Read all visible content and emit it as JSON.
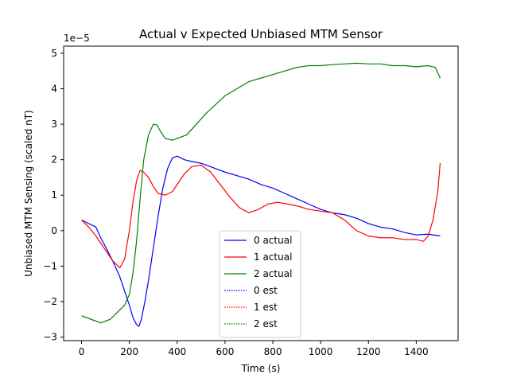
{
  "chart_data": {
    "type": "line",
    "title": "Actual v Expected Unbiased MTM Sensor",
    "xlabel": "Time (s)",
    "ylabel": "Unbiased MTM Sensing (scaled nT)",
    "y_offset_label": "1e−5",
    "xlim": [
      -75,
      1575
    ],
    "ylim": [
      -3.1,
      5.2
    ],
    "x_ticks": [
      0,
      200,
      400,
      600,
      800,
      1000,
      1200,
      1400
    ],
    "x_tick_labels": [
      "0",
      "200",
      "400",
      "600",
      "800",
      "1000",
      "1200",
      "1400"
    ],
    "y_ticks": [
      -3,
      -2,
      -1,
      0,
      1,
      2,
      3,
      4,
      5
    ],
    "y_tick_labels": [
      "−3",
      "−2",
      "−1",
      "0",
      "1",
      "2",
      "3",
      "4",
      "5"
    ],
    "grid": false,
    "legend_position": "lower-center",
    "series": [
      {
        "name": "0 actual",
        "color": "#0000ff",
        "style": "solid",
        "x": [
          0,
          30,
          60,
          80,
          100,
          130,
          160,
          180,
          200,
          215,
          230,
          240,
          250,
          265,
          280,
          300,
          320,
          340,
          360,
          380,
          400,
          430,
          460,
          500,
          540,
          600,
          650,
          700,
          750,
          800,
          850,
          900,
          950,
          1000,
          1050,
          1100,
          1150,
          1200,
          1250,
          1300,
          1350,
          1400,
          1450,
          1500
        ],
        "y": [
          0.3,
          0.2,
          0.1,
          -0.2,
          -0.45,
          -0.85,
          -1.3,
          -1.7,
          -2.1,
          -2.45,
          -2.65,
          -2.7,
          -2.5,
          -2.0,
          -1.4,
          -0.5,
          0.4,
          1.2,
          1.75,
          2.05,
          2.1,
          2.0,
          1.95,
          1.9,
          1.8,
          1.65,
          1.55,
          1.45,
          1.3,
          1.2,
          1.05,
          0.9,
          0.75,
          0.6,
          0.5,
          0.45,
          0.35,
          0.2,
          0.1,
          0.05,
          -0.05,
          -0.12,
          -0.1,
          -0.15
        ]
      },
      {
        "name": "1 actual",
        "color": "#ff0000",
        "style": "solid",
        "x": [
          0,
          30,
          60,
          100,
          130,
          160,
          180,
          200,
          215,
          230,
          245,
          260,
          280,
          300,
          320,
          350,
          380,
          400,
          430,
          460,
          500,
          540,
          580,
          620,
          660,
          700,
          740,
          780,
          820,
          860,
          900,
          950,
          1000,
          1050,
          1100,
          1150,
          1200,
          1250,
          1300,
          1350,
          1400,
          1430,
          1450,
          1470,
          1490,
          1500
        ],
        "y": [
          0.3,
          0.1,
          -0.15,
          -0.55,
          -0.85,
          -1.05,
          -0.8,
          0.0,
          0.8,
          1.4,
          1.7,
          1.65,
          1.5,
          1.25,
          1.05,
          1.0,
          1.1,
          1.3,
          1.6,
          1.8,
          1.85,
          1.65,
          1.3,
          0.95,
          0.65,
          0.5,
          0.6,
          0.75,
          0.8,
          0.75,
          0.7,
          0.6,
          0.55,
          0.5,
          0.3,
          0.0,
          -0.15,
          -0.2,
          -0.2,
          -0.25,
          -0.25,
          -0.3,
          -0.15,
          0.3,
          1.1,
          1.9
        ]
      },
      {
        "name": "2 actual",
        "color": "#008000",
        "style": "solid",
        "x": [
          0,
          40,
          80,
          120,
          150,
          180,
          200,
          215,
          230,
          245,
          260,
          280,
          300,
          315,
          330,
          350,
          380,
          400,
          440,
          480,
          520,
          560,
          600,
          650,
          700,
          750,
          800,
          850,
          900,
          950,
          1000,
          1050,
          1100,
          1150,
          1200,
          1250,
          1300,
          1350,
          1400,
          1450,
          1480,
          1500
        ],
        "y": [
          -2.4,
          -2.5,
          -2.6,
          -2.5,
          -2.3,
          -2.1,
          -1.8,
          -1.2,
          -0.3,
          0.9,
          2.0,
          2.7,
          3.0,
          2.98,
          2.8,
          2.6,
          2.55,
          2.6,
          2.7,
          3.0,
          3.3,
          3.55,
          3.8,
          4.0,
          4.2,
          4.3,
          4.4,
          4.5,
          4.6,
          4.65,
          4.65,
          4.68,
          4.7,
          4.72,
          4.7,
          4.7,
          4.65,
          4.65,
          4.62,
          4.65,
          4.6,
          4.3
        ]
      },
      {
        "name": "0 est",
        "color": "#0000ff",
        "style": "dotted",
        "x": [],
        "y": []
      },
      {
        "name": "1 est",
        "color": "#ff0000",
        "style": "dotted",
        "x": [],
        "y": []
      },
      {
        "name": "2 est",
        "color": "#008000",
        "style": "dotted",
        "x": [],
        "y": []
      }
    ]
  }
}
